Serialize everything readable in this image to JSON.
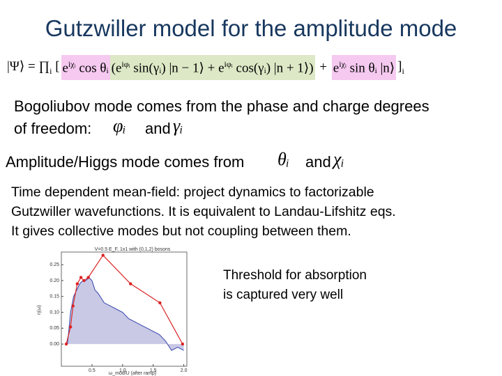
{
  "title": "Gutzwiller model for the amplitude mode",
  "equation": {
    "groups": [
      {
        "tokens": [
          {
            "text": "|Ψ⟩ = ∏",
            "pos": "base"
          },
          {
            "text": "i",
            "pos": "sub"
          },
          {
            "text": " [",
            "pos": "base"
          }
        ]
      },
      {
        "color": "#f5c9f0",
        "tokens": [
          {
            "text": "e",
            "pos": "base"
          },
          {
            "text": "iχᵢ",
            "pos": "sup"
          },
          {
            "text": " cos θᵢ",
            "pos": "base"
          }
        ]
      },
      {
        "color": "#dde8c6",
        "tokens": [
          {
            "text": "(e",
            "pos": "base"
          },
          {
            "text": "iφᵢ",
            "pos": "sup"
          },
          {
            "text": " sin(γᵢ) |n − 1⟩ + e",
            "pos": "base"
          },
          {
            "text": "iφᵢ",
            "pos": "sup"
          },
          {
            "text": " cos(γᵢ) |n + 1⟩)",
            "pos": "base"
          }
        ]
      },
      {
        "tokens": [
          {
            "text": " + ",
            "pos": "base"
          }
        ]
      },
      {
        "color": "#f5c9f0",
        "tokens": [
          {
            "text": "e",
            "pos": "base"
          },
          {
            "text": "iχᵢ",
            "pos": "sup"
          },
          {
            "text": " sin θᵢ |n⟩",
            "pos": "base"
          }
        ]
      },
      {
        "tokens": [
          {
            "text": "]",
            "pos": "base"
          },
          {
            "text": "i",
            "pos": "sub"
          }
        ]
      }
    ]
  },
  "bogoliubov": {
    "line1": "Bogoliubov mode comes from the phase and charge degrees",
    "line2": "of freedom:",
    "sym1": "φᵢ",
    "and": "and",
    "sym2": "γᵢ"
  },
  "amplitude": {
    "text": "Amplitude/Higgs mode comes from",
    "sym1": "θᵢ",
    "and": "and",
    "sym2": "χᵢ"
  },
  "paragraph": [
    "Time dependent mean-field: project dynamics to factorizable",
    "Gutzwiller wavefunctions. It is equivalent to  Landau-Lifshitz eqs.",
    "It gives collective modes but not coupling between them."
  ],
  "note": [
    "Threshold for absorption",
    "is captured very well"
  ],
  "plot": {
    "type": "line",
    "title": "V=0.5 E_F, 1x1 with (0,1,2) bosons",
    "xlabel": "ω_mod/U (after ramp)",
    "ylabel": "η(ω)",
    "xlim": [
      0,
      2.05
    ],
    "ylim": [
      -0.07,
      0.29
    ],
    "xticks": [
      0.5,
      {
        "value": 1.0,
        "label": "1.0"
      },
      1.5,
      {
        "value": 2.0,
        "label": "2.0"
      }
    ],
    "yticks": [
      {
        "value": 0,
        "label": "0.00"
      },
      {
        "value": 0.05,
        "label": "0.05"
      },
      {
        "value": 0.1,
        "label": "0.10"
      },
      {
        "value": 0.15,
        "label": "0.15"
      },
      {
        "value": 0.2,
        "label": "0.20"
      },
      {
        "value": 0.25,
        "label": "0.25"
      }
    ],
    "area": {
      "color": "#3344aa",
      "fill": "#c9c9e6",
      "x": [
        0.1,
        0.15,
        0.2,
        0.25,
        0.3,
        0.35,
        0.4,
        0.45,
        0.5,
        0.55,
        0.6,
        0.7,
        0.8,
        0.9,
        1.0,
        1.1,
        1.2,
        1.3,
        1.4,
        1.5,
        1.6,
        1.7,
        1.8,
        1.9,
        2.0
      ],
      "values": [
        0,
        0.1,
        0.15,
        0.17,
        0.19,
        0.2,
        0.2,
        0.21,
        0.2,
        0.17,
        0.16,
        0.13,
        0.12,
        0.11,
        0.1,
        0.08,
        0.07,
        0.06,
        0.05,
        0.04,
        0.03,
        0.01,
        -0.02,
        -0.01,
        -0.02
      ]
    },
    "points": {
      "color": "#dd2222",
      "x": [
        0.08,
        0.15,
        0.19,
        0.26,
        0.32,
        0.37,
        0.44,
        0.68,
        1.13,
        1.61,
        1.98
      ],
      "values": [
        0,
        0.054,
        0.12,
        0.19,
        0.21,
        0.2,
        0.21,
        0.28,
        0.19,
        0.13,
        0
      ]
    }
  }
}
